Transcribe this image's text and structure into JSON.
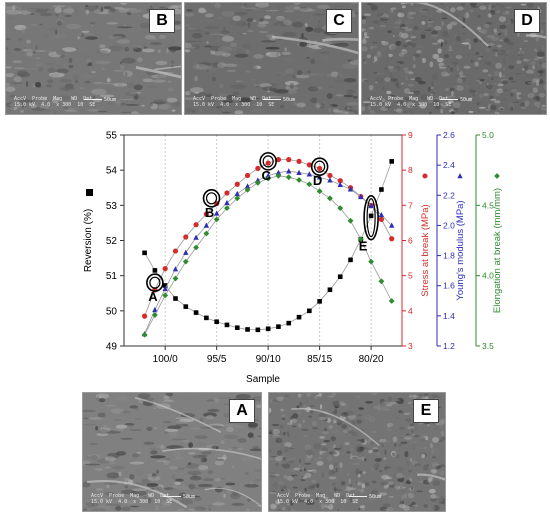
{
  "panels": {
    "B": {
      "label": "B",
      "databar": "AccV  Probe  Mag   WD  Det\n15.0 kV  4.0  x 300  10  SE",
      "scale_label": "50um"
    },
    "C": {
      "label": "C",
      "databar": "AccV  Probe  Mag   WD  Det\n15.0 kV  4.0  x 300  10  SE",
      "scale_label": "50um"
    },
    "D": {
      "label": "D",
      "databar": "AccV  Probe  Mag   WD  Det\n15.0 kV  4.0  x 300  10  SE",
      "scale_label": "50um"
    },
    "A": {
      "label": "A",
      "databar": "AccV  Probe  Mag   WD  Det\n15.0 kV  4.0  x 300  10  SE",
      "scale_label": "50um"
    },
    "E": {
      "label": "E",
      "databar": "AccV  Probe  Mag   WD  Det\n15.0 kV  4.0  x 300  10  SE",
      "scale_label": "50um"
    }
  },
  "chart_data": {
    "type": "scatter",
    "xlabel": "Sample",
    "x_categories": [
      "100/0",
      "95/5",
      "90/10",
      "85/15",
      "80/20"
    ],
    "x_range": [
      104,
      77
    ],
    "grid_x": true,
    "axes": {
      "reversion": {
        "label": "Reversion (%)",
        "range": [
          49,
          55
        ],
        "ticks": [
          "49",
          "50",
          "51",
          "52",
          "53",
          "54",
          "55"
        ],
        "color": "#000000",
        "marker": "square"
      },
      "stress": {
        "label": "Stress at break (MPa)",
        "range": [
          3,
          9
        ],
        "ticks": [
          "3",
          "4",
          "5",
          "6",
          "7",
          "8",
          "9"
        ],
        "color": "#d42b2b",
        "marker": "circle"
      },
      "youngs": {
        "label": "Young's modulus (MPa)",
        "range": [
          1.2,
          2.6
        ],
        "ticks": [
          "1.2",
          "1.4",
          "1.6",
          "1.8",
          "2.0",
          "2.2",
          "2.4",
          "2.6"
        ],
        "color": "#2d2db8",
        "marker": "triangle"
      },
      "elongation": {
        "label": "Elongation at break (mm/mm)",
        "range": [
          3.5,
          5.0
        ],
        "ticks": [
          "3.5",
          "4.0",
          "4.5",
          "5.0"
        ],
        "color": "#2e8b2e",
        "marker": "diamond"
      }
    },
    "series": [
      {
        "axis": "reversion",
        "x": [
          102,
          101,
          100,
          99,
          98,
          97,
          96,
          95,
          94,
          93,
          92,
          91,
          90,
          89,
          88,
          87,
          86,
          85,
          84,
          83,
          82,
          81,
          80,
          79,
          78
        ],
        "y": [
          51.65,
          51.15,
          50.72,
          50.35,
          50.12,
          49.95,
          49.8,
          49.69,
          49.6,
          49.52,
          49.47,
          49.46,
          49.49,
          49.55,
          49.65,
          49.82,
          50.0,
          50.27,
          50.6,
          50.97,
          51.45,
          52.03,
          52.7,
          53.45,
          54.25
        ]
      },
      {
        "axis": "stress",
        "x": [
          102,
          101,
          100,
          99,
          98,
          97,
          96,
          95,
          94,
          93,
          92,
          91,
          90,
          89,
          88,
          87,
          86,
          85,
          84,
          83,
          82,
          81,
          80,
          79,
          78
        ],
        "y": [
          3.85,
          4.6,
          5.2,
          5.7,
          6.1,
          6.45,
          6.75,
          7.05,
          7.35,
          7.6,
          7.85,
          8.05,
          8.2,
          8.3,
          8.3,
          8.25,
          8.15,
          8.05,
          7.85,
          7.7,
          7.5,
          7.25,
          7.0,
          6.6,
          6.05
        ]
      },
      {
        "axis": "youngs",
        "x": [
          102,
          101,
          100,
          99,
          98,
          97,
          96,
          95,
          94,
          93,
          92,
          91,
          90,
          89,
          88,
          87,
          86,
          85,
          84,
          83,
          82,
          81,
          80,
          79,
          78
        ],
        "y": [
          1.28,
          1.44,
          1.58,
          1.71,
          1.82,
          1.92,
          2.0,
          2.08,
          2.15,
          2.21,
          2.26,
          2.3,
          2.33,
          2.35,
          2.36,
          2.35,
          2.34,
          2.32,
          2.3,
          2.27,
          2.24,
          2.19,
          2.13,
          2.07,
          2.0
        ]
      },
      {
        "axis": "elongation",
        "x": [
          102,
          101,
          100,
          99,
          98,
          97,
          96,
          95,
          94,
          93,
          92,
          91,
          90,
          89,
          88,
          87,
          86,
          85,
          84,
          83,
          82,
          81,
          80,
          79,
          78
        ],
        "y": [
          3.58,
          3.72,
          3.86,
          3.98,
          4.1,
          4.2,
          4.3,
          4.4,
          4.48,
          4.55,
          4.61,
          4.66,
          4.69,
          4.71,
          4.7,
          4.68,
          4.65,
          4.6,
          4.55,
          4.48,
          4.39,
          4.26,
          4.1,
          3.96,
          3.82
        ]
      }
    ],
    "annotations": [
      {
        "label": "A",
        "x": 101,
        "y": 50.8
      },
      {
        "label": "B",
        "x": 95.5,
        "y": 53.2
      },
      {
        "label": "C",
        "x": 90,
        "y": 54.25
      },
      {
        "label": "D",
        "x": 85,
        "y": 54.1
      },
      {
        "label": "E",
        "x": 80,
        "y": 52.65
      }
    ]
  }
}
